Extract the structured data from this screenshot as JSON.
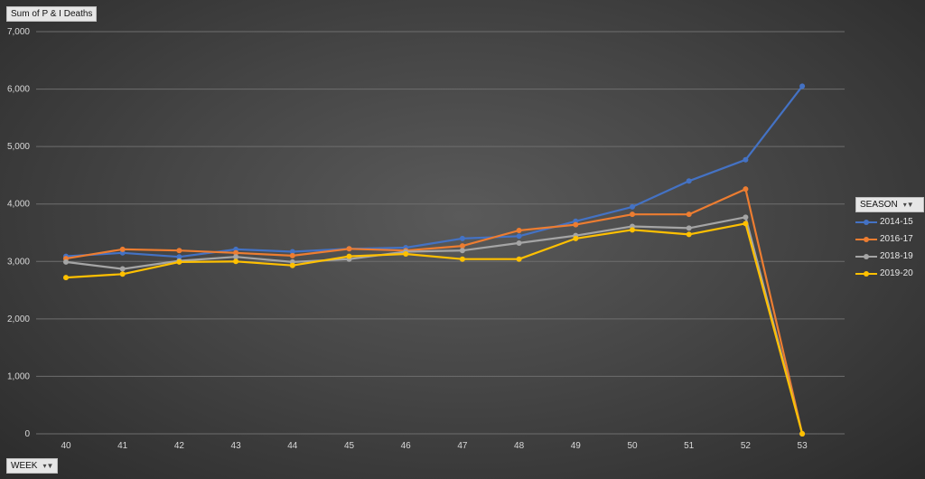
{
  "value_field": "Sum of P & I Deaths",
  "row_field": "WEEK",
  "series_field": "SEASON",
  "filter_glyph": "▾▼",
  "chart_data": {
    "type": "line",
    "title": "",
    "xlabel": "WEEK",
    "ylabel": "Sum of P & I Deaths",
    "ylim": [
      0,
      7000
    ],
    "y_ticks": [
      "0",
      "1,000",
      "2,000",
      "3,000",
      "4,000",
      "5,000",
      "6,000",
      "7,000"
    ],
    "y_tick_values": [
      0,
      1000,
      2000,
      3000,
      4000,
      5000,
      6000,
      7000
    ],
    "grid": true,
    "legend_position": "right",
    "categories": [
      "40",
      "41",
      "42",
      "43",
      "44",
      "45",
      "46",
      "47",
      "48",
      "49",
      "50",
      "51",
      "52",
      "53"
    ],
    "series": [
      {
        "name": "2014-15",
        "color": "#4472c4",
        "values": [
          3090,
          3150,
          3080,
          3210,
          3170,
          3220,
          3240,
          3400,
          3440,
          3700,
          3950,
          4400,
          4770,
          6050
        ]
      },
      {
        "name": "2016-17",
        "color": "#ed7d31",
        "values": [
          3050,
          3210,
          3190,
          3150,
          3100,
          3220,
          3190,
          3270,
          3540,
          3640,
          3820,
          3820,
          4260,
          0
        ]
      },
      {
        "name": "2018-19",
        "color": "#a5a5a5",
        "values": [
          2990,
          2870,
          3010,
          3080,
          2990,
          3040,
          3170,
          3190,
          3320,
          3450,
          3610,
          3580,
          3770,
          0
        ]
      },
      {
        "name": "2019-20",
        "color": "#ffc000",
        "values": [
          2720,
          2780,
          2990,
          3000,
          2930,
          3090,
          3130,
          3040,
          3040,
          3400,
          3550,
          3470,
          3660,
          0
        ]
      }
    ]
  }
}
